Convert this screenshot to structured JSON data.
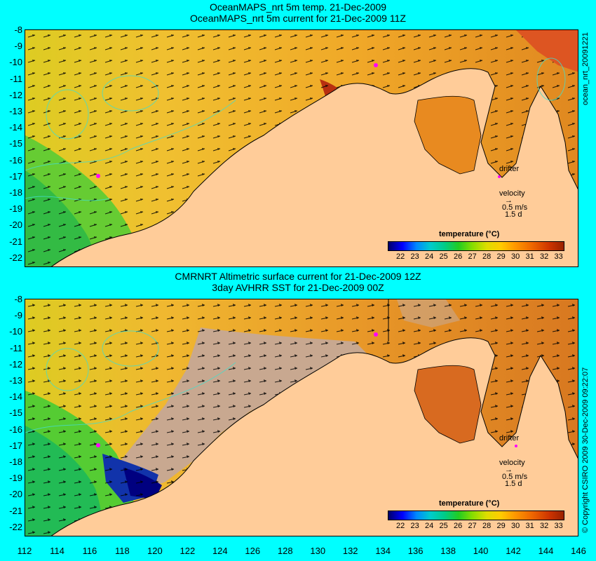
{
  "top_panel": {
    "title_line1": "OceanMAPS_nrt 5m temp. 21-Dec-2009",
    "title_line2": "OceanMAPS_nrt 5m current for 21-Dec-2009 11Z",
    "side_label": "ocean_nrt_20091221",
    "drifter_label": "drifter",
    "velocity_label": "velocity",
    "velocity_scale": "0.5 m/s",
    "velocity_time": "1.5 d",
    "legend_title": "temperature (°C)"
  },
  "bottom_panel": {
    "title_line1": "CMRNRT Altimetric surface current for 21-Dec-2009 12Z",
    "title_line2": "3day AVHRR SST for 21-Dec-2009 00Z",
    "side_label": "© Copyright CSIRO 2009   30-Dec-2009 09:22:07",
    "drifter_label": "drifter",
    "velocity_label": "velocity",
    "velocity_scale": "0.5 m/s",
    "velocity_time": "1.5 d",
    "legend_title": "temperature (°C)"
  },
  "colorbar_ticks": [
    "22",
    "23",
    "24",
    "25",
    "26",
    "27",
    "28",
    "29",
    "30",
    "31",
    "32",
    "33"
  ],
  "lat_ticks": [
    "-8",
    "-9",
    "-10",
    "-11",
    "-12",
    "-13",
    "-14",
    "-15",
    "-16",
    "-17",
    "-18",
    "-19",
    "-20",
    "-21",
    "-22"
  ],
  "lon_ticks": [
    "112",
    "114",
    "116",
    "118",
    "120",
    "122",
    "124",
    "126",
    "128",
    "130",
    "132",
    "134",
    "136",
    "138",
    "140",
    "142",
    "144",
    "146"
  ],
  "colors": {
    "background": "#00ffff",
    "land": "#ffcc99",
    "no_data": "#c8a890",
    "drifter": "#ff00ff"
  }
}
